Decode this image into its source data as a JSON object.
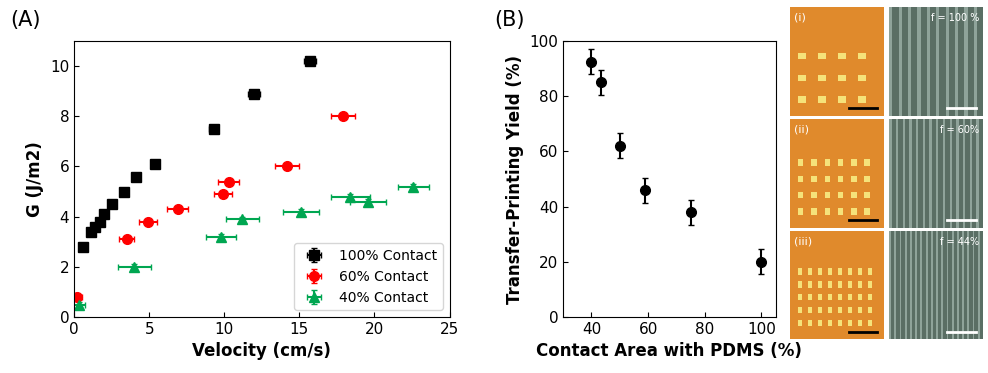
{
  "chart_data": [
    {
      "type": "scatter",
      "title": "(A)",
      "x_label": "Velocity (cm/s)",
      "y_label": "G (J/m2)",
      "xlim": [
        0,
        25
      ],
      "xticks": [
        0,
        5,
        10,
        15,
        20,
        25
      ],
      "ylim": [
        0,
        11
      ],
      "yticks": [
        0,
        2,
        4,
        6,
        8,
        10
      ],
      "legend": "lower right",
      "series": [
        {
          "name": "100% Contact",
          "color": "#000000",
          "marker": "square",
          "x": [
            0.6,
            1.1,
            1.4,
            1.7,
            2.0,
            2.5,
            3.3,
            4.1,
            5.4,
            9.3,
            12.0,
            15.7
          ],
          "values": [
            2.8,
            3.4,
            3.6,
            3.8,
            4.1,
            4.5,
            5.0,
            5.6,
            6.1,
            7.5,
            8.9,
            10.2
          ],
          "x_errors": [
            0.1,
            0.1,
            0.1,
            0.1,
            0.1,
            0.15,
            0.2,
            0.2,
            0.25,
            0.3,
            0.4,
            0.4
          ],
          "y_errors": [
            0.1,
            0.1,
            0.1,
            0.1,
            0.1,
            0.1,
            0.1,
            0.1,
            0.1,
            0.15,
            0.15,
            0.15
          ]
        },
        {
          "name": "60% Contact",
          "color": "#ff0000",
          "marker": "circle",
          "x": [
            0.2,
            3.5,
            4.9,
            6.9,
            9.9,
            10.3,
            14.2,
            17.9
          ],
          "values": [
            0.8,
            3.1,
            3.8,
            4.3,
            4.9,
            5.4,
            6.0,
            8.0
          ],
          "x_errors": [
            0.3,
            0.5,
            0.6,
            0.7,
            0.6,
            0.7,
            0.8,
            0.8
          ],
          "y_errors": [
            0.1,
            0.1,
            0.1,
            0.1,
            0.1,
            0.1,
            0.1,
            0.1
          ]
        },
        {
          "name": "40% Contact",
          "color": "#00a651",
          "marker": "triangle",
          "x": [
            0.3,
            4.0,
            9.8,
            11.2,
            15.1,
            18.4,
            19.6,
            22.6
          ],
          "values": [
            0.5,
            2.0,
            3.2,
            3.9,
            4.2,
            4.8,
            4.6,
            5.2
          ],
          "x_errors": [
            0.4,
            1.1,
            1.0,
            1.1,
            1.2,
            1.3,
            1.2,
            1.0
          ],
          "y_errors": [
            0.1,
            0.1,
            0.1,
            0.1,
            0.1,
            0.1,
            0.1,
            0.1
          ]
        }
      ]
    },
    {
      "type": "scatter",
      "title": "(B)",
      "x_label": "Contact Area with PDMS (%)",
      "y_label": "Transfer-Printing Yield (%)",
      "xlim": [
        30,
        105
      ],
      "xticks": [
        40,
        60,
        80,
        100
      ],
      "ylim": [
        0,
        100
      ],
      "yticks": [
        0,
        20,
        40,
        60,
        80,
        100
      ],
      "series": [
        {
          "name": "Transfer-Printing Yield",
          "color": "#000000",
          "marker": "circle",
          "x": [
            40,
            43.5,
            50,
            59,
            75,
            100
          ],
          "values": [
            92.5,
            85,
            62,
            46,
            38,
            20
          ],
          "y_errors": [
            4.5,
            4.5,
            4.5,
            4.5,
            4.5,
            4.5
          ]
        }
      ]
    }
  ],
  "micrographs": [
    {
      "label": "(i)",
      "f_label": "f = 100 %"
    },
    {
      "label": "(ii)",
      "f_label": "f = 60%"
    },
    {
      "label": "(iii)",
      "f_label": "f = 44%"
    }
  ]
}
